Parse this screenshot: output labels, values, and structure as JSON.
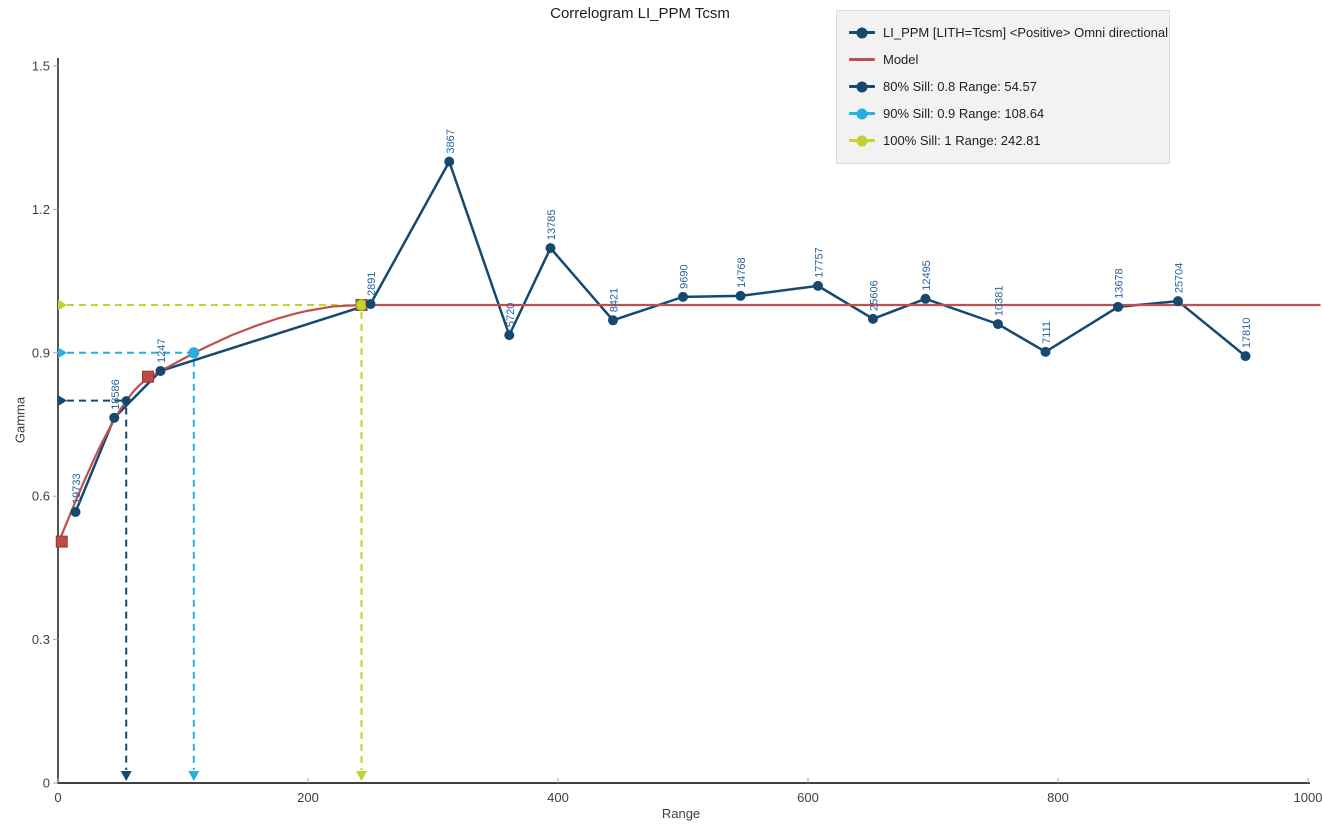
{
  "title": "Correlogram LI_PPM Tcsm",
  "legend": {
    "items": [
      {
        "label": "LI_PPM [LITH=Tcsm] <Positive> Omni directional",
        "marker": "line-dot",
        "color": "#17496F"
      },
      {
        "label": "Model",
        "marker": "line",
        "color": "#C0504D"
      },
      {
        "label": "80% Sill: 0.8 Range: 54.57",
        "marker": "line-dot",
        "color": "#17496F"
      },
      {
        "label": "90% Sill: 0.9 Range: 108.64",
        "marker": "line-dot",
        "color": "#29AEE3"
      },
      {
        "label": "100% Sill: 1 Range: 242.81",
        "marker": "line-dot",
        "color": "#C3D32D"
      }
    ]
  },
  "chart_data": {
    "type": "line",
    "title": "Correlogram LI_PPM Tcsm",
    "xlabel": "Range",
    "ylabel": "Gamma",
    "xlim": [
      0,
      1000
    ],
    "ylim": [
      0,
      1.5
    ],
    "x_ticks": [
      0,
      200,
      400,
      600,
      800,
      1000
    ],
    "y_ticks": [
      0,
      0.3,
      0.6,
      0.9,
      1.2,
      1.5
    ],
    "grid": false,
    "legend_position": "top-right",
    "series": [
      {
        "name": "LI_PPM [LITH=Tcsm] <Positive> Omni directional",
        "type": "line-markers",
        "color": "#17496F",
        "label_color": "#2B639C",
        "points": [
          {
            "x": 14,
            "y": 0.567,
            "count": "19733"
          },
          {
            "x": 45,
            "y": 0.764,
            "count": "18586"
          },
          {
            "x": 82,
            "y": 0.862,
            "count": "1247"
          },
          {
            "x": 250,
            "y": 1.002,
            "count": "2891"
          },
          {
            "x": 313,
            "y": 1.3,
            "count": "3867"
          },
          {
            "x": 361,
            "y": 0.937,
            "count": "5720"
          },
          {
            "x": 394,
            "y": 1.119,
            "count": "13785"
          },
          {
            "x": 444,
            "y": 0.968,
            "count": "8421"
          },
          {
            "x": 500,
            "y": 1.017,
            "count": "9690"
          },
          {
            "x": 546,
            "y": 1.019,
            "count": "14768"
          },
          {
            "x": 608,
            "y": 1.04,
            "count": "17757"
          },
          {
            "x": 652,
            "y": 0.971,
            "count": "25606"
          },
          {
            "x": 694,
            "y": 1.013,
            "count": "12495"
          },
          {
            "x": 752,
            "y": 0.96,
            "count": "10381"
          },
          {
            "x": 790,
            "y": 0.902,
            "count": "7111"
          },
          {
            "x": 848,
            "y": 0.996,
            "count": "13678"
          },
          {
            "x": 896,
            "y": 1.008,
            "count": "25704"
          },
          {
            "x": 950,
            "y": 0.893,
            "count": "17810"
          }
        ]
      },
      {
        "name": "Model",
        "type": "line",
        "color": "#C0504D",
        "handle_color": "#BE4B45",
        "nugget": 0.5,
        "points": [
          [
            0,
            0.5
          ],
          [
            5,
            0.532
          ],
          [
            10,
            0.564
          ],
          [
            15,
            0.595
          ],
          [
            20,
            0.626
          ],
          [
            25,
            0.655
          ],
          [
            30,
            0.684
          ],
          [
            35,
            0.711
          ],
          [
            40,
            0.736
          ],
          [
            45,
            0.76
          ],
          [
            50,
            0.782
          ],
          [
            55,
            0.801
          ],
          [
            60,
            0.818
          ],
          [
            65,
            0.832
          ],
          [
            70,
            0.843
          ],
          [
            73,
            0.848
          ],
          [
            80,
            0.859
          ],
          [
            90,
            0.873
          ],
          [
            100,
            0.887
          ],
          [
            110,
            0.901
          ],
          [
            120,
            0.914
          ],
          [
            130,
            0.926
          ],
          [
            140,
            0.938
          ],
          [
            150,
            0.948
          ],
          [
            160,
            0.958
          ],
          [
            175,
            0.971
          ],
          [
            190,
            0.982
          ],
          [
            200,
            0.988
          ],
          [
            220,
            0.997
          ],
          [
            242.81,
            1.0
          ],
          [
            1010,
            1.0
          ]
        ],
        "handles": [
          [
            3,
            0.505
          ],
          [
            72,
            0.85
          ],
          [
            242.81,
            1.0
          ]
        ]
      }
    ],
    "sills": [
      {
        "label": "80% Sill: 0.8 Range: 54.57",
        "sill": 0.8,
        "range": 54.57,
        "color": "#17496F",
        "marker_radius": 4.5
      },
      {
        "label": "90% Sill: 0.9 Range: 108.64",
        "sill": 0.9,
        "range": 108.64,
        "color": "#29AEE3",
        "marker_radius": 5.5
      },
      {
        "label": "100% Sill: 1 Range: 242.81",
        "sill": 1.0,
        "range": 242.81,
        "color": "#C3D32D",
        "marker_radius": 5.5,
        "handle_behind": true
      }
    ]
  }
}
